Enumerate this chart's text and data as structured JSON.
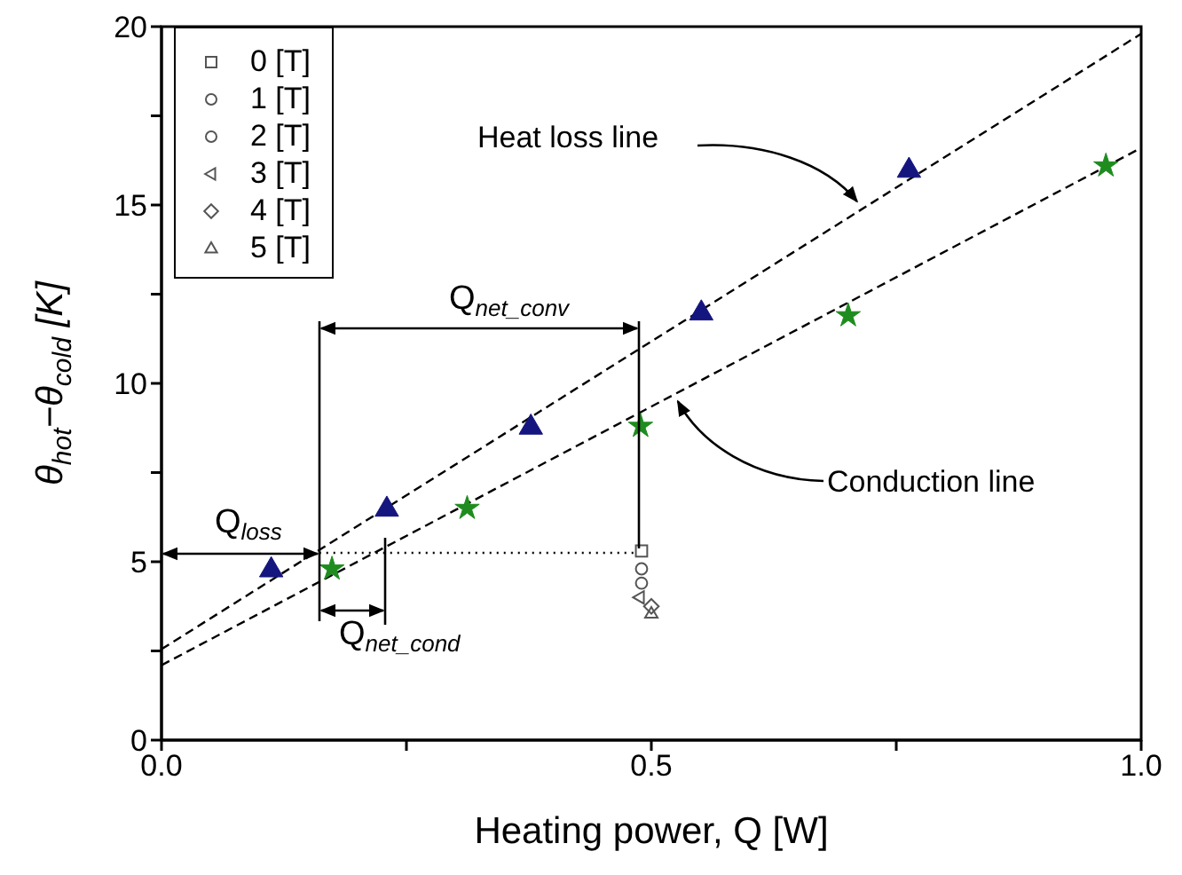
{
  "chart_data": {
    "type": "scatter",
    "xlabel": "Heating power, Q [W]",
    "ylabel": "θ$_{hot}$−θ$_{cold}$ [K]",
    "xlim": [
      0,
      1
    ],
    "xticks": [
      {
        "value": 0,
        "label": "0.0"
      },
      {
        "value": 0.25,
        "label": null
      },
      0.5,
      {
        "value": 0.75,
        "label": null
      },
      {
        "value": 1,
        "label": "1.0"
      }
    ],
    "ylim": [
      0,
      20
    ],
    "yticks": [
      0,
      {
        "value": 2.5,
        "label": null
      },
      5,
      {
        "value": 7.5,
        "label": null
      },
      10,
      {
        "value": 12.5,
        "label": null
      },
      15,
      {
        "value": 17.5,
        "label": null
      },
      20
    ],
    "grid": false,
    "legend": "top left",
    "series": [
      {
        "type": "line",
        "color": "#000000",
        "line_style": "dashed",
        "marker": "none",
        "x": [
          0,
          1
        ],
        "values": [
          2.55,
          19.8
        ]
      },
      {
        "type": "line",
        "color": "#000000",
        "line_style": "dashed",
        "marker": "none",
        "x": [
          0,
          1
        ],
        "values": [
          2.1,
          16.6
        ]
      },
      {
        "color": "#15157f",
        "marker": "triangle",
        "x": [
          0.112,
          0.23,
          0.377,
          0.551,
          0.763
        ],
        "values": [
          4.8,
          6.5,
          8.8,
          12.0,
          16.0
        ]
      },
      {
        "color": "#1e8c1e",
        "marker": "star",
        "x": [
          0.174,
          0.312,
          0.489,
          0.701,
          0.964
        ],
        "values": [
          4.8,
          6.5,
          8.8,
          11.9,
          16.1
        ]
      },
      {
        "type": "line",
        "color": "#000000",
        "line_style": "dotted",
        "marker": "none",
        "x": [
          0.161,
          0.487
        ],
        "values": [
          5.25,
          5.25
        ]
      },
      {
        "name": "0 [T]",
        "color": "#555555",
        "marker": "square",
        "x": [
          0.49
        ],
        "values": [
          5.3
        ]
      },
      {
        "name": "1 [T]",
        "color": "#555555",
        "marker": "circle",
        "x": [
          0.49
        ],
        "values": [
          4.8
        ]
      },
      {
        "name": "2 [T]",
        "color": "#555555",
        "marker": "circle",
        "x": [
          0.49
        ],
        "values": [
          4.4
        ]
      },
      {
        "name": "3 [T]",
        "color": "#555555",
        "marker": "triangle-left",
        "x": [
          0.488
        ],
        "values": [
          4.0
        ]
      },
      {
        "name": "4 [T]",
        "color": "#555555",
        "marker": "diamond",
        "x": [
          0.5
        ],
        "values": [
          3.75
        ]
      },
      {
        "name": "5 [T]",
        "color": "#555555",
        "marker": "triangle",
        "x": [
          0.5
        ],
        "values": [
          3.55
        ]
      }
    ],
    "annotations": [
      {
        "text": "Heat loss line",
        "x": 0.71,
        "y": 15.1
      },
      {
        "text": "Conduction line",
        "x": 0.527,
        "y": 9.5
      },
      "Q$_{loss}$",
      "Q$_{net_conv}$",
      "Q$_{net_cond}$"
    ]
  }
}
